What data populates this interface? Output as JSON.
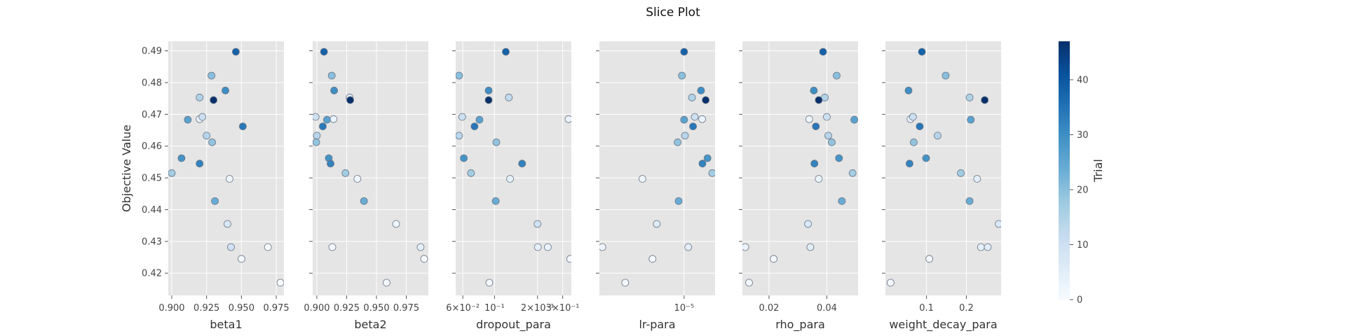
{
  "chart_data": {
    "type": "scatter",
    "title": "Slice Plot",
    "ylabel": "Objective Value",
    "ylim": [
      0.413,
      0.493
    ],
    "yticks": [
      0.42,
      0.43,
      0.44,
      0.45,
      0.46,
      0.47,
      0.48,
      0.49
    ],
    "ytick_labels": [
      "0.42",
      "0.43",
      "0.44",
      "0.45",
      "0.46",
      "0.47",
      "0.48",
      "0.49"
    ],
    "grid": true,
    "colorbar": {
      "label": "Trial",
      "range": [
        0,
        47
      ],
      "ticks": [
        0,
        10,
        20,
        30,
        40
      ],
      "tick_labels": [
        "0",
        "10",
        "20",
        "30",
        "40"
      ],
      "colors": [
        "#f7fbff",
        "#deebf7",
        "#c6dbef",
        "#9ecae1",
        "#6baed6",
        "#4292c6",
        "#2171b5",
        "#08519c",
        "#08306b"
      ]
    },
    "panels": [
      {
        "xlabel": "beta1",
        "scale": "linear",
        "xlim": [
          0.8975,
          0.9805
        ],
        "xticks": [
          0.9,
          0.925,
          0.95,
          0.975
        ],
        "xtick_labels": [
          "0.900",
          "0.925",
          "0.950",
          "0.975"
        ],
        "points": [
          {
            "x": 0.946,
            "y": 0.4897,
            "trial": 38
          },
          {
            "x": 0.9285,
            "y": 0.4822,
            "trial": 20
          },
          {
            "x": 0.9385,
            "y": 0.4775,
            "trial": 30
          },
          {
            "x": 0.92,
            "y": 0.4753,
            "trial": 15
          },
          {
            "x": 0.93,
            "y": 0.4745,
            "trial": 47
          },
          {
            "x": 0.922,
            "y": 0.4692,
            "trial": 10
          },
          {
            "x": 0.92,
            "y": 0.4685,
            "trial": 3
          },
          {
            "x": 0.9115,
            "y": 0.4683,
            "trial": 26
          },
          {
            "x": 0.951,
            "y": 0.4662,
            "trial": 34
          },
          {
            "x": 0.925,
            "y": 0.4633,
            "trial": 14
          },
          {
            "x": 0.929,
            "y": 0.4612,
            "trial": 19
          },
          {
            "x": 0.907,
            "y": 0.4562,
            "trial": 29
          },
          {
            "x": 0.92,
            "y": 0.4545,
            "trial": 32
          },
          {
            "x": 0.9,
            "y": 0.4515,
            "trial": 17
          },
          {
            "x": 0.9415,
            "y": 0.4497,
            "trial": 2
          },
          {
            "x": 0.931,
            "y": 0.4427,
            "trial": 24
          },
          {
            "x": 0.94,
            "y": 0.4355,
            "trial": 7
          },
          {
            "x": 0.9425,
            "y": 0.4282,
            "trial": 9
          },
          {
            "x": 0.969,
            "y": 0.4282,
            "trial": 0
          },
          {
            "x": 0.95,
            "y": 0.4245,
            "trial": 1
          },
          {
            "x": 0.978,
            "y": 0.417,
            "trial": 0
          }
        ]
      },
      {
        "xlabel": "beta2",
        "scale": "linear",
        "xlim": [
          0.8965,
          0.9935
        ],
        "xticks": [
          0.9,
          0.925,
          0.95,
          0.975
        ],
        "xtick_labels": [
          "0.900",
          "0.925",
          "0.950",
          "0.975"
        ],
        "points": [
          {
            "x": 0.906,
            "y": 0.4897,
            "trial": 38
          },
          {
            "x": 0.9125,
            "y": 0.4822,
            "trial": 20
          },
          {
            "x": 0.9145,
            "y": 0.4775,
            "trial": 30
          },
          {
            "x": 0.9275,
            "y": 0.4753,
            "trial": 5
          },
          {
            "x": 0.928,
            "y": 0.4745,
            "trial": 47
          },
          {
            "x": 0.899,
            "y": 0.4692,
            "trial": 10
          },
          {
            "x": 0.914,
            "y": 0.4685,
            "trial": 3
          },
          {
            "x": 0.9085,
            "y": 0.4683,
            "trial": 26
          },
          {
            "x": 0.905,
            "y": 0.4662,
            "trial": 34
          },
          {
            "x": 0.9,
            "y": 0.4633,
            "trial": 14
          },
          {
            "x": 0.8995,
            "y": 0.4612,
            "trial": 19
          },
          {
            "x": 0.91,
            "y": 0.4562,
            "trial": 29
          },
          {
            "x": 0.9115,
            "y": 0.4545,
            "trial": 32
          },
          {
            "x": 0.924,
            "y": 0.4515,
            "trial": 17
          },
          {
            "x": 0.934,
            "y": 0.4497,
            "trial": 2
          },
          {
            "x": 0.9395,
            "y": 0.4427,
            "trial": 24
          },
          {
            "x": 0.9665,
            "y": 0.4355,
            "trial": 2
          },
          {
            "x": 0.913,
            "y": 0.4282,
            "trial": 1
          },
          {
            "x": 0.987,
            "y": 0.4282,
            "trial": 4
          },
          {
            "x": 0.99,
            "y": 0.4245,
            "trial": 0
          },
          {
            "x": 0.9585,
            "y": 0.417,
            "trial": 1
          }
        ]
      },
      {
        "xlabel": "dropout_para",
        "scale": "log",
        "xlim": [
          0.0535,
          0.345
        ],
        "xticks": [
          0.06,
          0.1,
          0.2,
          0.3
        ],
        "xtick_labels": [
          "6×10⁻²",
          "10⁻¹",
          "2×10⁻¹",
          "3×10⁻¹"
        ],
        "points": [
          {
            "x": 0.12,
            "y": 0.4897,
            "trial": 38
          },
          {
            "x": 0.0565,
            "y": 0.4822,
            "trial": 20
          },
          {
            "x": 0.091,
            "y": 0.4775,
            "trial": 30
          },
          {
            "x": 0.126,
            "y": 0.4753,
            "trial": 12
          },
          {
            "x": 0.091,
            "y": 0.4745,
            "trial": 47
          },
          {
            "x": 0.0595,
            "y": 0.4692,
            "trial": 10
          },
          {
            "x": 0.33,
            "y": 0.4685,
            "trial": 3
          },
          {
            "x": 0.0785,
            "y": 0.4683,
            "trial": 26
          },
          {
            "x": 0.0725,
            "y": 0.4662,
            "trial": 34
          },
          {
            "x": 0.0565,
            "y": 0.4633,
            "trial": 14
          },
          {
            "x": 0.103,
            "y": 0.4612,
            "trial": 19
          },
          {
            "x": 0.061,
            "y": 0.4562,
            "trial": 29
          },
          {
            "x": 0.156,
            "y": 0.4545,
            "trial": 32
          },
          {
            "x": 0.0685,
            "y": 0.4515,
            "trial": 17
          },
          {
            "x": 0.1285,
            "y": 0.4497,
            "trial": 4
          },
          {
            "x": 0.102,
            "y": 0.4427,
            "trial": 24
          },
          {
            "x": 0.2,
            "y": 0.4355,
            "trial": 9
          },
          {
            "x": 0.201,
            "y": 0.4282,
            "trial": 4
          },
          {
            "x": 0.236,
            "y": 0.4282,
            "trial": 3
          },
          {
            "x": 0.339,
            "y": 0.4245,
            "trial": 1
          },
          {
            "x": 0.092,
            "y": 0.417,
            "trial": 1
          }
        ]
      },
      {
        "xlabel": "lr-para",
        "scale": "log",
        "xlim": [
          1.4e-06,
          2.05e-05
        ],
        "xticks": [
          1e-05
        ],
        "xtick_labels": [
          "10⁻⁵"
        ],
        "points": [
          {
            "x": 1e-05,
            "y": 0.4897,
            "trial": 38
          },
          {
            "x": 9.5e-06,
            "y": 0.4822,
            "trial": 20
          },
          {
            "x": 1.48e-05,
            "y": 0.4775,
            "trial": 30
          },
          {
            "x": 1.2e-05,
            "y": 0.4753,
            "trial": 15
          },
          {
            "x": 1.65e-05,
            "y": 0.4745,
            "trial": 47
          },
          {
            "x": 1.28e-05,
            "y": 0.4692,
            "trial": 10
          },
          {
            "x": 1.52e-05,
            "y": 0.4685,
            "trial": 3
          },
          {
            "x": 1e-05,
            "y": 0.4683,
            "trial": 26
          },
          {
            "x": 1.23e-05,
            "y": 0.4662,
            "trial": 34
          },
          {
            "x": 1.02e-05,
            "y": 0.4633,
            "trial": 14
          },
          {
            "x": 8.6e-06,
            "y": 0.4612,
            "trial": 19
          },
          {
            "x": 1.72e-05,
            "y": 0.4562,
            "trial": 29
          },
          {
            "x": 1.53e-05,
            "y": 0.4545,
            "trial": 32
          },
          {
            "x": 1.92e-05,
            "y": 0.4515,
            "trial": 17
          },
          {
            "x": 3.8e-06,
            "y": 0.4497,
            "trial": 2
          },
          {
            "x": 8.8e-06,
            "y": 0.4427,
            "trial": 24
          },
          {
            "x": 5.3e-06,
            "y": 0.4355,
            "trial": 6
          },
          {
            "x": 1.1e-05,
            "y": 0.4282,
            "trial": 5
          },
          {
            "x": 1.5e-06,
            "y": 0.4282,
            "trial": 2
          },
          {
            "x": 4.8e-06,
            "y": 0.4245,
            "trial": 1
          },
          {
            "x": 2.55e-06,
            "y": 0.417,
            "trial": 1
          }
        ]
      },
      {
        "xlabel": "rho_para",
        "scale": "linear",
        "xlim": [
          0.0108,
          0.0508
        ],
        "xticks": [
          0.02,
          0.04
        ],
        "xtick_labels": [
          "0.02",
          "0.04"
        ],
        "points": [
          {
            "x": 0.0387,
            "y": 0.4897,
            "trial": 38
          },
          {
            "x": 0.0434,
            "y": 0.4822,
            "trial": 20
          },
          {
            "x": 0.0355,
            "y": 0.4775,
            "trial": 30
          },
          {
            "x": 0.0393,
            "y": 0.4753,
            "trial": 15
          },
          {
            "x": 0.0372,
            "y": 0.4745,
            "trial": 47
          },
          {
            "x": 0.04,
            "y": 0.4692,
            "trial": 10
          },
          {
            "x": 0.0339,
            "y": 0.4685,
            "trial": 2
          },
          {
            "x": 0.0495,
            "y": 0.4683,
            "trial": 26
          },
          {
            "x": 0.0362,
            "y": 0.4662,
            "trial": 34
          },
          {
            "x": 0.0405,
            "y": 0.4633,
            "trial": 14
          },
          {
            "x": 0.0417,
            "y": 0.4612,
            "trial": 19
          },
          {
            "x": 0.0442,
            "y": 0.4562,
            "trial": 29
          },
          {
            "x": 0.0357,
            "y": 0.4545,
            "trial": 32
          },
          {
            "x": 0.0489,
            "y": 0.4515,
            "trial": 17
          },
          {
            "x": 0.0372,
            "y": 0.4497,
            "trial": 3
          },
          {
            "x": 0.0452,
            "y": 0.4427,
            "trial": 24
          },
          {
            "x": 0.0335,
            "y": 0.4355,
            "trial": 7
          },
          {
            "x": 0.0343,
            "y": 0.4282,
            "trial": 5
          },
          {
            "x": 0.0118,
            "y": 0.4282,
            "trial": 3
          },
          {
            "x": 0.0216,
            "y": 0.4245,
            "trial": 1
          },
          {
            "x": 0.0131,
            "y": 0.417,
            "trial": 1
          }
        ]
      },
      {
        "xlabel": "weight_decay_para",
        "scale": "linear",
        "xlim": [
          -0.003,
          0.287
        ],
        "xticks": [
          0.1,
          0.2
        ],
        "xtick_labels": [
          "0.1",
          "0.2"
        ],
        "points": [
          {
            "x": 0.0885,
            "y": 0.4897,
            "trial": 38
          },
          {
            "x": 0.148,
            "y": 0.4822,
            "trial": 20
          },
          {
            "x": 0.055,
            "y": 0.4775,
            "trial": 30
          },
          {
            "x": 0.208,
            "y": 0.4753,
            "trial": 15
          },
          {
            "x": 0.246,
            "y": 0.4745,
            "trial": 47
          },
          {
            "x": 0.066,
            "y": 0.4692,
            "trial": 10
          },
          {
            "x": 0.06,
            "y": 0.4685,
            "trial": 3
          },
          {
            "x": 0.211,
            "y": 0.4683,
            "trial": 26
          },
          {
            "x": 0.083,
            "y": 0.4662,
            "trial": 34
          },
          {
            "x": 0.128,
            "y": 0.4633,
            "trial": 14
          },
          {
            "x": 0.068,
            "y": 0.4612,
            "trial": 19
          },
          {
            "x": 0.099,
            "y": 0.4562,
            "trial": 29
          },
          {
            "x": 0.0575,
            "y": 0.4545,
            "trial": 32
          },
          {
            "x": 0.186,
            "y": 0.4515,
            "trial": 17
          },
          {
            "x": 0.227,
            "y": 0.4497,
            "trial": 5
          },
          {
            "x": 0.208,
            "y": 0.4427,
            "trial": 24
          },
          {
            "x": 0.281,
            "y": 0.4355,
            "trial": 7
          },
          {
            "x": 0.2365,
            "y": 0.4282,
            "trial": 4
          },
          {
            "x": 0.2535,
            "y": 0.4282,
            "trial": 5
          },
          {
            "x": 0.107,
            "y": 0.4245,
            "trial": 1
          },
          {
            "x": 0.01,
            "y": 0.417,
            "trial": 1
          }
        ]
      }
    ]
  }
}
